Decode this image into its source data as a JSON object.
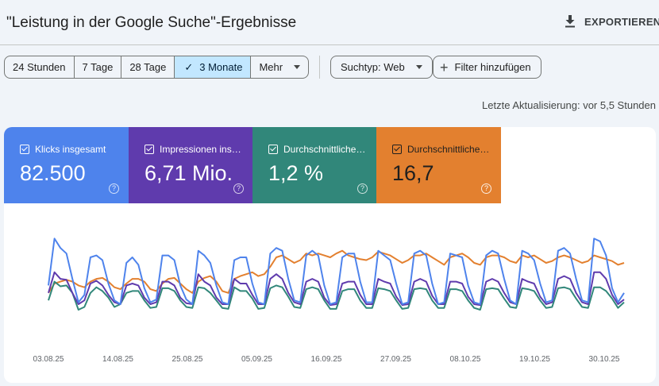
{
  "header": {
    "title": "\"Leistung in der Google Suche\"-Ergebnisse",
    "export_label": "EXPORTIEREN",
    "export_icon": "download-icon"
  },
  "toolbar": {
    "ranges": [
      {
        "label": "24 Stunden",
        "active": false
      },
      {
        "label": "7 Tage",
        "active": false
      },
      {
        "label": "28 Tage",
        "active": false
      },
      {
        "label": "3 Monate",
        "active": true
      },
      {
        "label": "Mehr",
        "active": false
      }
    ],
    "search_type": "Suchtyp: Web",
    "add_filter": "Filter hinzufügen"
  },
  "last_update": "Letzte Aktualisierung: vor 5,5 Stunden",
  "metrics": [
    {
      "label": "Klicks insgesamt",
      "value": "82.500",
      "color": "#4e83ec"
    },
    {
      "label": "Impressionen ins…",
      "value": "6,71 Mio.",
      "color": "#5f3bad"
    },
    {
      "label": "Durchschnittliche…",
      "value": "1,2 %",
      "color": "#31877a"
    },
    {
      "label": "Durchschnittliche…",
      "value": "16,7",
      "color": "#e3802f"
    }
  ],
  "chart_data": {
    "type": "line",
    "x_tick_labels": [
      "03.08.25",
      "14.08.25",
      "25.08.25",
      "05.09.25",
      "16.09.25",
      "27.09.25",
      "08.10.25",
      "19.10.25",
      "30.10.25"
    ],
    "x_start": "31.07.25",
    "x_end": "31.10.25",
    "grid": false,
    "y_axis_labels_shown": false,
    "series": [
      {
        "color": "#4e83ec",
        "values": [
          48,
          98,
          88,
          82,
          55,
          30,
          38,
          78,
          80,
          75,
          50,
          32,
          28,
          72,
          78,
          70,
          45,
          30,
          33,
          80,
          80,
          75,
          48,
          33,
          28,
          85,
          80,
          72,
          48,
          30,
          28,
          75,
          78,
          78,
          50,
          30,
          28,
          82,
          88,
          85,
          55,
          32,
          30,
          80,
          85,
          80,
          48,
          28,
          30,
          78,
          82,
          82,
          52,
          30,
          30,
          85,
          80,
          75,
          50,
          28,
          30,
          82,
          85,
          80,
          50,
          28,
          30,
          82,
          80,
          78,
          48,
          30,
          28,
          80,
          85,
          82,
          55,
          32,
          28,
          85,
          82,
          75,
          50,
          30,
          32,
          85,
          88,
          82,
          55,
          32,
          30,
          98,
          95,
          80,
          45,
          30,
          40
        ]
      },
      {
        "color": "#5f3bad",
        "values": [
          40,
          62,
          55,
          54,
          40,
          28,
          32,
          50,
          53,
          48,
          38,
          30,
          28,
          48,
          50,
          48,
          35,
          28,
          30,
          52,
          52,
          48,
          35,
          29,
          28,
          60,
          52,
          48,
          35,
          28,
          28,
          55,
          50,
          50,
          38,
          28,
          28,
          55,
          60,
          55,
          40,
          30,
          28,
          52,
          55,
          52,
          35,
          27,
          28,
          50,
          52,
          52,
          38,
          28,
          28,
          55,
          52,
          50,
          36,
          27,
          28,
          52,
          55,
          52,
          37,
          28,
          28,
          52,
          52,
          50,
          36,
          28,
          27,
          52,
          55,
          52,
          40,
          30,
          28,
          55,
          52,
          50,
          36,
          28,
          30,
          55,
          58,
          55,
          40,
          30,
          28,
          62,
          62,
          55,
          38,
          28,
          33
        ]
      },
      {
        "color": "#31877a",
        "values": [
          32,
          52,
          47,
          48,
          40,
          22,
          25,
          40,
          46,
          42,
          35,
          25,
          28,
          40,
          42,
          42,
          32,
          24,
          25,
          45,
          45,
          42,
          32,
          25,
          24,
          46,
          45,
          40,
          32,
          24,
          23,
          46,
          42,
          42,
          34,
          23,
          24,
          45,
          48,
          46,
          36,
          25,
          24,
          44,
          46,
          44,
          32,
          23,
          23,
          42,
          44,
          44,
          32,
          24,
          24,
          45,
          44,
          42,
          32,
          23,
          24,
          44,
          45,
          44,
          32,
          24,
          24,
          44,
          44,
          42,
          32,
          24,
          22,
          44,
          45,
          44,
          34,
          25,
          24,
          45,
          44,
          42,
          32,
          24,
          25,
          45,
          46,
          44,
          34,
          25,
          24,
          46,
          46,
          42,
          34,
          24,
          30
        ]
      },
      {
        "color": "#e3802f",
        "values": [
          40,
          50,
          52,
          54,
          52,
          48,
          46,
          52,
          55,
          56,
          52,
          46,
          44,
          50,
          55,
          55,
          52,
          44,
          42,
          50,
          55,
          56,
          50,
          44,
          40,
          52,
          56,
          58,
          52,
          42,
          40,
          55,
          58,
          60,
          62,
          58,
          60,
          68,
          78,
          80,
          76,
          72,
          75,
          82,
          80,
          82,
          80,
          78,
          82,
          85,
          80,
          78,
          76,
          75,
          78,
          84,
          82,
          80,
          76,
          72,
          75,
          80,
          80,
          82,
          78,
          74,
          70,
          78,
          80,
          82,
          78,
          72,
          70,
          78,
          80,
          80,
          78,
          74,
          72,
          80,
          78,
          80,
          76,
          72,
          74,
          78,
          80,
          78,
          75,
          72,
          74,
          80,
          78,
          76,
          74,
          70,
          72
        ]
      }
    ]
  }
}
